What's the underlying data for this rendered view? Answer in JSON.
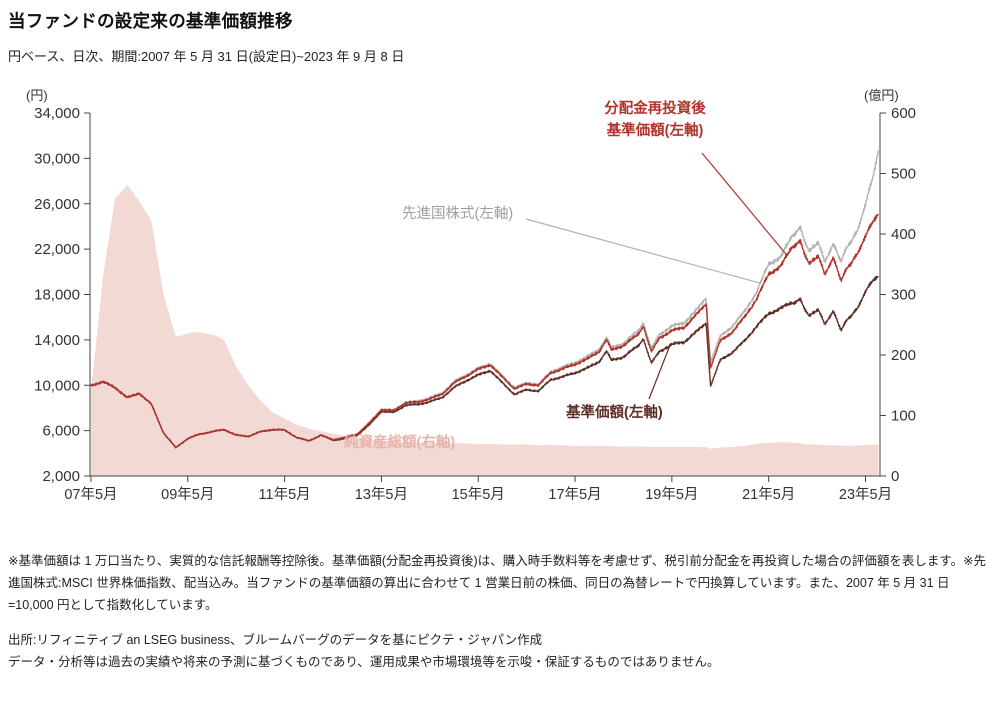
{
  "page": {
    "title": "当ファンドの設定来の基準価額推移",
    "subtitle": "円ベース、日次、期間:2007 年 5 月 31 日(設定日)~2023 年 9 月 8 日"
  },
  "chart_data": {
    "type": "line",
    "title": "当ファンドの設定来の基準価額推移",
    "left_axis": {
      "unit": "(円)",
      "min": 2000,
      "max": 34000,
      "step": 4000,
      "tick_labels": [
        "34,000",
        "30,000",
        "26,000",
        "22,000",
        "18,000",
        "14,000",
        "10,000",
        "6,000",
        "2,000"
      ]
    },
    "right_axis": {
      "unit": "(億円)",
      "min": 0,
      "max": 600,
      "step": 100,
      "tick_labels": [
        "600",
        "500",
        "400",
        "300",
        "200",
        "100",
        "0"
      ]
    },
    "x_axis": {
      "min": 2007.4,
      "max": 2023.72,
      "ticks": [
        {
          "year": 2007.42,
          "label": "07年5月"
        },
        {
          "year": 2009.42,
          "label": "09年5月"
        },
        {
          "year": 2011.42,
          "label": "11年5月"
        },
        {
          "year": 2013.42,
          "label": "13年5月"
        },
        {
          "year": 2015.42,
          "label": "15年5月"
        },
        {
          "year": 2017.42,
          "label": "17年5月"
        },
        {
          "year": 2019.42,
          "label": "19年5月"
        },
        {
          "year": 2021.42,
          "label": "21年5月"
        },
        {
          "year": 2023.42,
          "label": "23年5月"
        }
      ]
    },
    "annotations": {
      "reinvested": {
        "lines": [
          "分配金再投資後",
          "基準価額(左軸)"
        ],
        "color": "#b0342b"
      },
      "world": {
        "label": "先進国株式(左軸)",
        "color": "#9e9e9e"
      },
      "nav": {
        "label": "基準価額(左軸)",
        "color": "#5f2f27"
      },
      "assets": {
        "label": "純資産総額(右軸)",
        "color": "#e5b4ac"
      }
    },
    "x": [
      2007.42,
      2007.67,
      2007.92,
      2008.17,
      2008.42,
      2008.67,
      2008.92,
      2009.17,
      2009.42,
      2009.67,
      2009.92,
      2010.17,
      2010.42,
      2010.67,
      2010.92,
      2011.17,
      2011.42,
      2011.67,
      2011.92,
      2012.17,
      2012.42,
      2012.67,
      2012.92,
      2013.17,
      2013.42,
      2013.67,
      2013.92,
      2014.17,
      2014.42,
      2014.67,
      2014.92,
      2015.17,
      2015.42,
      2015.67,
      2015.92,
      2016.17,
      2016.42,
      2016.67,
      2016.92,
      2017.17,
      2017.42,
      2017.67,
      2017.92,
      2018.08,
      2018.17,
      2018.42,
      2018.67,
      2018.83,
      2019.0,
      2019.17,
      2019.42,
      2019.67,
      2019.92,
      2020.13,
      2020.22,
      2020.42,
      2020.67,
      2020.92,
      2021.17,
      2021.42,
      2021.67,
      2021.92,
      2022.08,
      2022.25,
      2022.45,
      2022.58,
      2022.75,
      2022.92,
      2023.08,
      2023.25,
      2023.42,
      2023.58,
      2023.69
    ],
    "series": [
      {
        "name": "分配金再投資後基準価額(左軸)",
        "axis": "left",
        "type": "line",
        "color": "#b0342b",
        "values": [
          10000,
          10300,
          9800,
          8900,
          9300,
          8300,
          5800,
          4500,
          5300,
          5700,
          5900,
          6100,
          5600,
          5500,
          5900,
          6100,
          6050,
          5400,
          5100,
          5600,
          5200,
          5400,
          5700,
          6650,
          7850,
          7750,
          8450,
          8500,
          8800,
          9200,
          10200,
          10800,
          11400,
          11800,
          10700,
          9700,
          10100,
          10000,
          11100,
          11450,
          11850,
          12300,
          13000,
          14000,
          13100,
          13500,
          14300,
          15100,
          13000,
          14200,
          14800,
          15100,
          16200,
          17100,
          11500,
          13900,
          14700,
          16000,
          17600,
          19800,
          20500,
          22300,
          22600,
          20700,
          21300,
          19800,
          21200,
          19300,
          20600,
          21500,
          23200,
          24500,
          25100
        ]
      },
      {
        "name": "基準価額(左軸)",
        "axis": "left",
        "type": "line",
        "color": "#5f2f27",
        "values": [
          10000,
          10300,
          9800,
          8900,
          9300,
          8300,
          5800,
          4500,
          5300,
          5700,
          5900,
          6100,
          5600,
          5500,
          5900,
          6100,
          6050,
          5400,
          5100,
          5600,
          5150,
          5300,
          5600,
          6500,
          7700,
          7600,
          8250,
          8300,
          8550,
          8900,
          9800,
          10400,
          10900,
          11300,
          10200,
          9200,
          9600,
          9500,
          10500,
          10750,
          11100,
          11500,
          12100,
          13000,
          12200,
          12500,
          13300,
          14000,
          12000,
          13000,
          13600,
          13800,
          14700,
          15400,
          9900,
          12200,
          12900,
          13900,
          15200,
          16300,
          16800,
          17300,
          17500,
          16100,
          16600,
          15400,
          16500,
          14900,
          16000,
          16700,
          18300,
          19300,
          19600
        ]
      },
      {
        "name": "先進国株式(左軸)",
        "axis": "left",
        "type": "line",
        "color": "#b3b3b3",
        "values": [
          10000,
          10300,
          9800,
          8900,
          9300,
          8300,
          5800,
          4500,
          5300,
          5700,
          5900,
          6100,
          5600,
          5500,
          5900,
          6100,
          6050,
          5400,
          5100,
          5600,
          5200,
          5400,
          5700,
          6700,
          7900,
          7800,
          8500,
          8600,
          8900,
          9300,
          10300,
          10900,
          11500,
          11900,
          10800,
          9800,
          10200,
          10100,
          11200,
          11600,
          12000,
          12500,
          13200,
          14200,
          13300,
          13700,
          14600,
          15400,
          13300,
          14500,
          15200,
          15500,
          16600,
          17600,
          12000,
          14300,
          15200,
          16500,
          18200,
          20700,
          21300,
          23300,
          23800,
          21800,
          22500,
          20900,
          22400,
          21000,
          22500,
          23500,
          26000,
          28500,
          30700
        ]
      },
      {
        "name": "純資産総額(右軸)",
        "axis": "right",
        "type": "area",
        "color": "#f3d9d4",
        "values": [
          140,
          330,
          460,
          480,
          455,
          420,
          300,
          230,
          236,
          238,
          234,
          225,
          180,
          150,
          125,
          105,
          95,
          85,
          78,
          74,
          70,
          66,
          62,
          60,
          58,
          57,
          56,
          55,
          55,
          54,
          54,
          54,
          53,
          53,
          52,
          52,
          52,
          51,
          51,
          51,
          50,
          50,
          50,
          50,
          49,
          49,
          49,
          49,
          48,
          48,
          48,
          48,
          48,
          48,
          45,
          47,
          48,
          50,
          53,
          55,
          56,
          55,
          54,
          52,
          52,
          51,
          51,
          50,
          50,
          51,
          51,
          52,
          52
        ]
      }
    ]
  },
  "footnotes": {
    "text": "※基準価額は 1 万口当たり、実質的な信託報酬等控除後。基準価額(分配金再投資後)は、購入時手数料等を考慮せず、税引前分配金を再投資した場合の評価額を表します。※先進国株式:MSCI 世界株価指数、配当込み。当ファンドの基準価額の算出に合わせて 1 営業日前の株価、同日の為替レートで円換算しています。また、2007 年 5 月 31 日=10,000 円として指数化しています。",
    "source": "出所:リフィニティブ  an LSEG business、ブルームバーグのデータを基にピクテ・ジャパン作成",
    "disclaimer": "データ・分析等は過去の実績や将来の予測に基づくものであり、運用成果や市場環境等を示唆・保証するものではありません。"
  }
}
